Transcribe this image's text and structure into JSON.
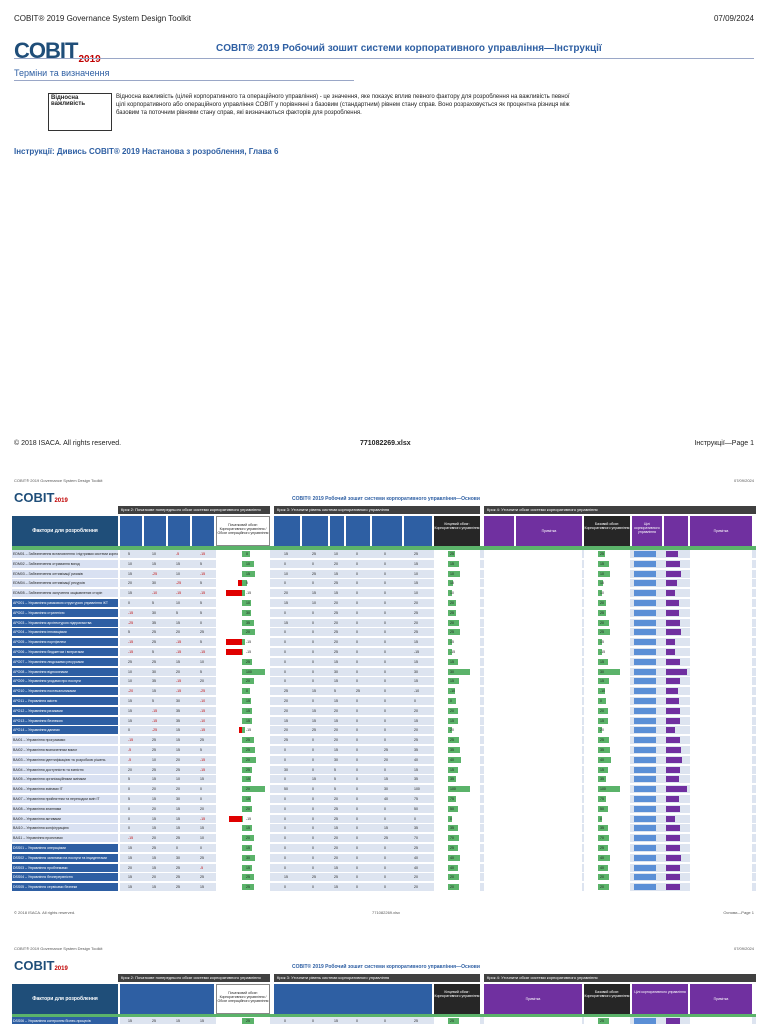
{
  "page1": {
    "header_left": "COBIT® 2019 Governance System Design Toolkit",
    "header_right": "07/09/2024",
    "logo_text": "COBIT",
    "logo_year": "2019",
    "title": "COBIT® 2019 Робочий зошит системи корпоративного управління—Інструкції",
    "terms_heading": "Терміни та визначення",
    "term_name": "Відносна важливість",
    "term_definition": "Відносна важливість (цілей корпоративного та операційного управління) - це значення, яке показує вплив певного фактору для розроблення на важливість певної цілі корпоративного або операційного управління COBIT у порівнянні з базовим (стандартним) рівнем стану справ. Воно розраховується як процентна різниця між базовим та поточним рівнями стану справ, які визначаються факторів для розроблення.",
    "instructions": "Інструкції: Дивись COBIT® 2019 Настанова з розроблення, Глава 6",
    "footer_left": "© 2018 ISACA. All rights reserved.",
    "footer_mid": "771082269.xlsx",
    "footer_right": "Інструкції—Page 1"
  },
  "sheet": {
    "top_left": "COBIT® 2019 Governance System Design Toolkit",
    "top_right": "07/09/2024",
    "logo_text": "COBIT",
    "logo_year": "2019",
    "title": "COBIT® 2019 Робочий зошит системи корпоративного управління—Основи",
    "step2": "Крок 2: Початкове попереднього обсяг системи корпоративного управління",
    "step3": "Крок 3: Уточнити рівень системи корпоративного управління",
    "step4": "Крок 4: Уточнити обсяг системи корпоративного управління",
    "factors_header": "Фактори для розроблення",
    "col_initial": "Початковий обсяг: Корпоративного управління / Обсяг операційного управління",
    "col_final": "Кінцевий обсяг: Корпоративного управління",
    "col_base": "Базовий обсяг: Корпоративного управління",
    "col_goals": "Цілі корпоративного управління",
    "col_notes": "Примітка",
    "footer_left": "© 2018 ISACA. All rights reserved.",
    "footer_mid": "771082269.xlsx",
    "footer_right": "Основи—Page 1"
  },
  "rows": [
    {
      "id": "EDM01",
      "label": "EDM01 – Забезпечення встановлення і підтримки системи корпоративного управління",
      "v": [
        "5",
        "10",
        "-5",
        "-15"
      ],
      "init": "0",
      "d": [
        "15",
        "25",
        "10",
        "0",
        "0",
        "25"
      ],
      "fin": "25",
      "bar": 0.3,
      "red": 0
    },
    {
      "id": "EDM02",
      "label": "EDM02 – Забезпечення отримання вигод",
      "v": [
        "10",
        "15",
        "15",
        "5"
      ],
      "init": "10",
      "d": [
        "0",
        "0",
        "20",
        "0",
        "0",
        "15"
      ],
      "fin": "15",
      "bar": 0.45,
      "red": 0
    },
    {
      "id": "EDM03",
      "label": "EDM03 – Забезпечення оптимізації ризиків",
      "v": [
        "15",
        "-25",
        "10",
        "-15"
      ],
      "init": "15",
      "d": [
        "10",
        "25",
        "15",
        "0",
        "0",
        "10"
      ],
      "fin": "10",
      "bar": 0.5,
      "red": 0
    },
    {
      "id": "EDM04",
      "label": "EDM04 – Забезпечення оптимізації ресурсів",
      "v": [
        "20",
        "30",
        "-25",
        "5"
      ],
      "init": "5",
      "d": [
        "0",
        "0",
        "25",
        "0",
        "0",
        "15"
      ],
      "fin": "15",
      "bar": 0.2,
      "red": 0.15
    },
    {
      "id": "EDM05",
      "label": "EDM05 – Забезпечення залучення зацікавлених сторін",
      "v": [
        "15",
        "-10",
        "-15",
        "-15"
      ],
      "init": "-15",
      "d": [
        "20",
        "15",
        "15",
        "0",
        "0",
        "10"
      ],
      "fin": "10",
      "bar": 0.1,
      "red": 0.6
    },
    {
      "id": "APO01",
      "label": "APO01 – Управління рамковою структурою управління ІКТ",
      "v": [
        "0",
        "5",
        "10",
        "5"
      ],
      "init": "10",
      "d": [
        "15",
        "10",
        "20",
        "0",
        "0",
        "20"
      ],
      "fin": "20",
      "bar": 0.35,
      "red": 0
    },
    {
      "id": "APO02",
      "label": "APO02 – Управління стратегією",
      "v": [
        "-15",
        "30",
        "5",
        "5"
      ],
      "init": "30",
      "d": [
        "0",
        "0",
        "25",
        "0",
        "0",
        "25"
      ],
      "fin": "25",
      "bar": 0.35,
      "red": 0
    },
    {
      "id": "APO03",
      "label": "APO03 – Управління архітектурою підприємства",
      "v": [
        "-25",
        "35",
        "15",
        "0"
      ],
      "init": "35",
      "d": [
        "15",
        "0",
        "20",
        "0",
        "0",
        "20"
      ],
      "fin": "20",
      "bar": 0.45,
      "red": 0
    },
    {
      "id": "APO04",
      "label": "APO04 – Управління інноваціями",
      "v": [
        "5",
        "25",
        "20",
        "25"
      ],
      "init": "20",
      "d": [
        "0",
        "0",
        "25",
        "0",
        "0",
        "25"
      ],
      "fin": "25",
      "bar": 0.5,
      "red": 0
    },
    {
      "id": "APO05",
      "label": "APO05 – Управління портфелем",
      "v": [
        "-15",
        "25",
        "-15",
        "5"
      ],
      "init": "-15",
      "d": [
        "0",
        "0",
        "20",
        "0",
        "0",
        "15"
      ],
      "fin": "15",
      "bar": 0.1,
      "red": 0.6
    },
    {
      "id": "APO06",
      "label": "APO06 – Управління бюджетом і витратами",
      "v": [
        "-15",
        "5",
        "-15",
        "-15"
      ],
      "init": "-15",
      "d": [
        "0",
        "0",
        "25",
        "0",
        "0",
        "-15"
      ],
      "fin": "-15",
      "bar": 0.05,
      "red": 0.6
    },
    {
      "id": "APO07",
      "label": "APO07 – Управління людськими ресурсами",
      "v": [
        "25",
        "25",
        "15",
        "10"
      ],
      "init": "25",
      "d": [
        "0",
        "0",
        "15",
        "0",
        "0",
        "15"
      ],
      "fin": "15",
      "bar": 0.4,
      "red": 0
    },
    {
      "id": "APO08",
      "label": "APO08 – Управління відносинами",
      "v": [
        "10",
        "30",
        "20",
        "5"
      ],
      "init": "100",
      "d": [
        "0",
        "0",
        "30",
        "0",
        "0",
        "30"
      ],
      "fin": "30",
      "bar": 0.9,
      "red": 0
    },
    {
      "id": "APO09",
      "label": "APO09 – Управління угодами про послуги",
      "v": [
        "10",
        "35",
        "-15",
        "20"
      ],
      "init": "20",
      "d": [
        "0",
        "0",
        "15",
        "0",
        "0",
        "15"
      ],
      "fin": "15",
      "bar": 0.45,
      "red": 0
    },
    {
      "id": "APO10",
      "label": "APO10 – Управління постачальниками",
      "v": [
        "-20",
        "15",
        "-15",
        "-25"
      ],
      "init": "0",
      "d": [
        "25",
        "15",
        "5",
        "25",
        "0",
        "-10"
      ],
      "fin": "-10",
      "bar": 0.3,
      "red": 0
    },
    {
      "id": "APO11",
      "label": "APO11 – Управління якістю",
      "v": [
        "15",
        "5",
        "30",
        "-10"
      ],
      "init": "15",
      "d": [
        "20",
        "0",
        "15",
        "0",
        "0",
        "0"
      ],
      "fin": "0",
      "bar": 0.35,
      "red": 0
    },
    {
      "id": "APO12",
      "label": "APO12 – Управління ризиками",
      "v": [
        "15",
        "-15",
        "35",
        "-15"
      ],
      "init": "15",
      "d": [
        "20",
        "15",
        "20",
        "0",
        "0",
        "20"
      ],
      "fin": "20",
      "bar": 0.4,
      "red": 0
    },
    {
      "id": "APO13",
      "label": "APO13 – Управління безпекою",
      "v": [
        "15",
        "-15",
        "35",
        "-10"
      ],
      "init": "15",
      "d": [
        "15",
        "15",
        "15",
        "0",
        "0",
        "15"
      ],
      "fin": "15",
      "bar": 0.4,
      "red": 0
    },
    {
      "id": "APO14",
      "label": "APO14 – Управління даними",
      "v": [
        "0",
        "-25",
        "15",
        "-15"
      ],
      "init": "-15",
      "d": [
        "20",
        "25",
        "20",
        "0",
        "0",
        "20"
      ],
      "fin": "20",
      "bar": 0.1,
      "red": 0.1
    },
    {
      "id": "BAI01",
      "label": "BAI01 – Управління програмами",
      "v": [
        "-15",
        "25",
        "15",
        "25"
      ],
      "init": "25",
      "d": [
        "25",
        "0",
        "20",
        "0",
        "0",
        "25"
      ],
      "fin": "25",
      "bar": 0.45,
      "red": 0
    },
    {
      "id": "BAI02",
      "label": "BAI02 – Управління визначенням вимог",
      "v": [
        "-5",
        "25",
        "15",
        "5"
      ],
      "init": "25",
      "d": [
        "0",
        "0",
        "15",
        "0",
        "25",
        "35"
      ],
      "fin": "35",
      "bar": 0.5,
      "red": 0
    },
    {
      "id": "BAI03",
      "label": "BAI03 – Управління ідентифікацією та розробкою рішень",
      "v": [
        "-5",
        "10",
        "20",
        "-15"
      ],
      "init": "20",
      "d": [
        "0",
        "0",
        "30",
        "0",
        "20",
        "40"
      ],
      "fin": "40",
      "bar": 0.55,
      "red": 0
    },
    {
      "id": "BAI04",
      "label": "BAI04 – Управління доступністю та ємністю",
      "v": [
        "20",
        "25",
        "25",
        "-15"
      ],
      "init": "25",
      "d": [
        "30",
        "0",
        "5",
        "0",
        "0",
        "15"
      ],
      "fin": "15",
      "bar": 0.4,
      "red": 0
    },
    {
      "id": "BAI05",
      "label": "BAI05 – Управління організаційними змінами",
      "v": [
        "5",
        "15",
        "10",
        "15"
      ],
      "init": "15",
      "d": [
        "0",
        "15",
        "5",
        "0",
        "15",
        "35"
      ],
      "fin": "35",
      "bar": 0.35,
      "red": 0
    },
    {
      "id": "BAI06",
      "label": "BAI06 – Управління змінами ІТ",
      "v": [
        "0",
        "20",
        "20",
        "0"
      ],
      "init": "20",
      "d": [
        "50",
        "0",
        "5",
        "0",
        "30",
        "100"
      ],
      "fin": "100",
      "bar": 0.9,
      "red": 0
    },
    {
      "id": "BAI07",
      "label": "BAI07 – Управління прийняттям та переходом змін ІТ",
      "v": [
        "5",
        "15",
        "30",
        "0"
      ],
      "init": "15",
      "d": [
        "0",
        "0",
        "20",
        "0",
        "40",
        "75"
      ],
      "fin": "75",
      "bar": 0.35,
      "red": 0
    },
    {
      "id": "BAI08",
      "label": "BAI08 – Управління знаннями",
      "v": [
        "0",
        "20",
        "15",
        "20"
      ],
      "init": "20",
      "d": [
        "0",
        "0",
        "25",
        "0",
        "0",
        "50"
      ],
      "fin": "50",
      "bar": 0.4,
      "red": 0
    },
    {
      "id": "BAI09",
      "label": "BAI09 – Управління активами",
      "v": [
        "0",
        "15",
        "15",
        "-15"
      ],
      "init": "-15",
      "d": [
        "0",
        "0",
        "25",
        "0",
        "0",
        "0"
      ],
      "fin": "0",
      "bar": 0.05,
      "red": 0.5
    },
    {
      "id": "BAI10",
      "label": "BAI10 – Управління конфігурацією",
      "v": [
        "0",
        "15",
        "15",
        "15"
      ],
      "init": "15",
      "d": [
        "0",
        "0",
        "15",
        "0",
        "15",
        "35"
      ],
      "fin": "35",
      "bar": 0.4,
      "red": 0
    },
    {
      "id": "BAI11",
      "label": "BAI11 – Управління проектами",
      "v": [
        "-15",
        "20",
        "25",
        "10"
      ],
      "init": "20",
      "d": [
        "0",
        "0",
        "20",
        "0",
        "25",
        "70"
      ],
      "fin": "70",
      "bar": 0.45,
      "red": 0
    },
    {
      "id": "DSS01",
      "label": "DSS01 – Управління операціями",
      "v": [
        "15",
        "25",
        "0",
        "0"
      ],
      "init": "15",
      "d": [
        "0",
        "0",
        "20",
        "0",
        "0",
        "25"
      ],
      "fin": "25",
      "bar": 0.4,
      "red": 0
    },
    {
      "id": "DSS02",
      "label": "DSS02 – Управління запитами на послуги та інцидентами",
      "v": [
        "15",
        "15",
        "30",
        "25"
      ],
      "init": "30",
      "d": [
        "0",
        "0",
        "20",
        "0",
        "0",
        "40"
      ],
      "fin": "40",
      "bar": 0.5,
      "red": 0
    },
    {
      "id": "DSS03",
      "label": "DSS03 – Управління проблемами",
      "v": [
        "20",
        "15",
        "25",
        "-5"
      ],
      "init": "15",
      "d": [
        "0",
        "0",
        "15",
        "0",
        "0",
        "40"
      ],
      "fin": "40",
      "bar": 0.4,
      "red": 0
    },
    {
      "id": "DSS04",
      "label": "DSS04 – Управління безперервністю",
      "v": [
        "15",
        "20",
        "25",
        "25"
      ],
      "init": "25",
      "d": [
        "15",
        "25",
        "25",
        "0",
        "0",
        "20"
      ],
      "fin": "20",
      "bar": 0.45,
      "red": 0
    },
    {
      "id": "DSS05",
      "label": "DSS05 – Управління сервісами безпеки",
      "v": [
        "15",
        "15",
        "25",
        "15"
      ],
      "init": "25",
      "d": [
        "0",
        "0",
        "15",
        "0",
        "0",
        "20"
      ],
      "fin": "20",
      "bar": 0.45,
      "red": 0
    }
  ],
  "rows2": [
    {
      "id": "DSS06",
      "label": "DSS06 – Управління контролем бізнес-процесів",
      "v": [
        "15",
        "25",
        "15",
        "15"
      ],
      "init": "25",
      "d": [
        "0",
        "0",
        "15",
        "0",
        "0",
        "25"
      ],
      "fin": "25",
      "bar": 0.45,
      "red": 0
    }
  ]
}
